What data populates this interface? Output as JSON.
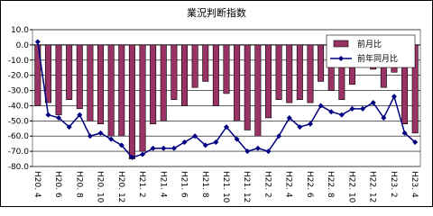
{
  "chart_data": {
    "type": "bar-line",
    "title": "業況判断指数",
    "categories": [
      "H20. 4",
      null,
      "H20. 6",
      null,
      "H20. 8",
      null,
      "H20. 10",
      null,
      "H20. 12",
      null,
      "H21. 2",
      null,
      "H21. 4",
      null,
      "H21. 6",
      null,
      "H21. 8",
      null,
      "H21. 10",
      null,
      "H21. 12",
      null,
      "H22. 2",
      null,
      "H22. 4",
      null,
      "H22. 6",
      null,
      "H22. 8",
      null,
      "H22. 10",
      null,
      "H22. 12",
      null,
      "H23. 2",
      null,
      "H23. 4"
    ],
    "series": [
      {
        "name": "前月比",
        "type": "bar",
        "color": "#993366",
        "values": [
          -40,
          -38,
          -46,
          -36,
          -42,
          -50,
          -52,
          -60,
          -60,
          -75,
          -70,
          -52,
          -50,
          -36,
          -40,
          -28,
          -24,
          -40,
          -32,
          -50,
          -56,
          -60,
          -48,
          -36,
          -38,
          -36,
          -38,
          -24,
          -30,
          -36,
          -26,
          -14,
          -16,
          -28,
          -18,
          -52,
          -58
        ]
      },
      {
        "name": "前年同月比",
        "type": "line",
        "color": "#000080",
        "values": [
          2,
          -46,
          -48,
          -54,
          -46,
          -60,
          -58,
          -62,
          -66,
          -74,
          -72,
          -68,
          -68,
          -68,
          -64,
          -60,
          -66,
          -64,
          -54,
          -62,
          -70,
          -68,
          -70,
          -60,
          -48,
          -54,
          -52,
          -40,
          -44,
          -46,
          -42,
          -42,
          -38,
          -48,
          -34,
          -58,
          -64
        ]
      }
    ],
    "ylim": [
      -80,
      10
    ],
    "yticks": [
      {
        "value": 10,
        "label": "10.0"
      },
      {
        "value": 0,
        "label": "0.0"
      },
      {
        "value": -10,
        "label": "-10.0"
      },
      {
        "value": -20,
        "label": "-20.0"
      },
      {
        "value": -30,
        "label": "-30.0"
      },
      {
        "value": -40,
        "label": "-40.0"
      },
      {
        "value": -50,
        "label": "-50.0"
      },
      {
        "value": -60,
        "label": "-60.0"
      },
      {
        "value": -70,
        "label": "-70.0"
      },
      {
        "value": -80,
        "label": "-80.0"
      }
    ],
    "grid": true,
    "legend": "upper-right"
  }
}
